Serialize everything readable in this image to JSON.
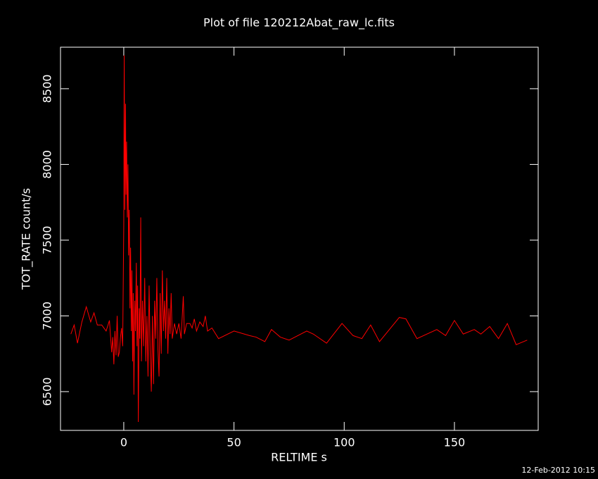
{
  "chart_data": {
    "type": "line",
    "title": "Plot of file 120212Abat_raw_lc.fits",
    "x_label": "RELTIME  s",
    "y_label": "TOT_RATE  count/s",
    "footer": "12-Feb-2012 10:15",
    "color": "#ff0000",
    "xlim": [
      -28.7,
      188
    ],
    "ylim": [
      6244,
      8774
    ],
    "xticks": [
      0,
      50,
      100,
      150
    ],
    "yticks": [
      6500,
      7000,
      7500,
      8000,
      8500
    ],
    "x": [
      -24,
      -22.5,
      -21,
      -19,
      -17,
      -15,
      -13.5,
      -12,
      -10,
      -8,
      -6.5,
      -5.5,
      -5,
      -4.5,
      -4,
      -3.5,
      -3,
      -2.5,
      -2,
      -1.5,
      -1,
      -0.5,
      0,
      0.2,
      0.5,
      0.8,
      1,
      1.3,
      1.6,
      1.9,
      2.2,
      2.5,
      2.8,
      3.1,
      3.4,
      3.7,
      4,
      4.3,
      4.6,
      5,
      5.3,
      5.7,
      6,
      6.3,
      6.6,
      7,
      7.3,
      7.7,
      8,
      8.5,
      9,
      9.5,
      10,
      10.5,
      11,
      11.5,
      12,
      12.5,
      13,
      13.5,
      14,
      14.5,
      15,
      15.5,
      16,
      16.5,
      17,
      17.5,
      18,
      18.5,
      19,
      19.5,
      20,
      20.5,
      21,
      21.5,
      22,
      23,
      24,
      25,
      26,
      27,
      27.5,
      28.5,
      30,
      31,
      32,
      33,
      34.5,
      36,
      37,
      38,
      40,
      43,
      50,
      57,
      60,
      64,
      67,
      71,
      75,
      83,
      86,
      92,
      99,
      104,
      108,
      112,
      116,
      125,
      128,
      133,
      142,
      146,
      150,
      154,
      159,
      162,
      166,
      170,
      174,
      178,
      183
    ],
    "values": [
      6880,
      6940,
      6820,
      6960,
      7060,
      6960,
      7020,
      6940,
      6940,
      6900,
      6970,
      6760,
      6860,
      6680,
      6900,
      6740,
      7000,
      6730,
      6760,
      6860,
      6920,
      6800,
      7600,
      8720,
      7700,
      8400,
      7800,
      8150,
      7650,
      8000,
      7400,
      7700,
      7050,
      7450,
      6900,
      7300,
      6700,
      7150,
      6480,
      7100,
      6900,
      7350,
      6800,
      7200,
      6300,
      7050,
      6850,
      7650,
      6700,
      7100,
      6800,
      7250,
      6700,
      7000,
      6600,
      7200,
      6750,
      6500,
      7000,
      6550,
      7100,
      6850,
      7250,
      6780,
      6600,
      7150,
      6750,
      7300,
      6900,
      7100,
      6850,
      7250,
      6750,
      7050,
      6880,
      7150,
      6850,
      6950,
      6880,
      6950,
      6850,
      7130,
      6880,
      6950,
      6950,
      6920,
      6980,
      6900,
      6960,
      6930,
      7000,
      6900,
      6920,
      6850,
      6900,
      6870,
      6860,
      6830,
      6910,
      6860,
      6840,
      6900,
      6880,
      6820,
      6950,
      6870,
      6850,
      6940,
      6830,
      6990,
      6980,
      6850,
      6910,
      6870,
      6970,
      6880,
      6910,
      6880,
      6930,
      6850,
      6950,
      6810,
      6840
    ]
  }
}
